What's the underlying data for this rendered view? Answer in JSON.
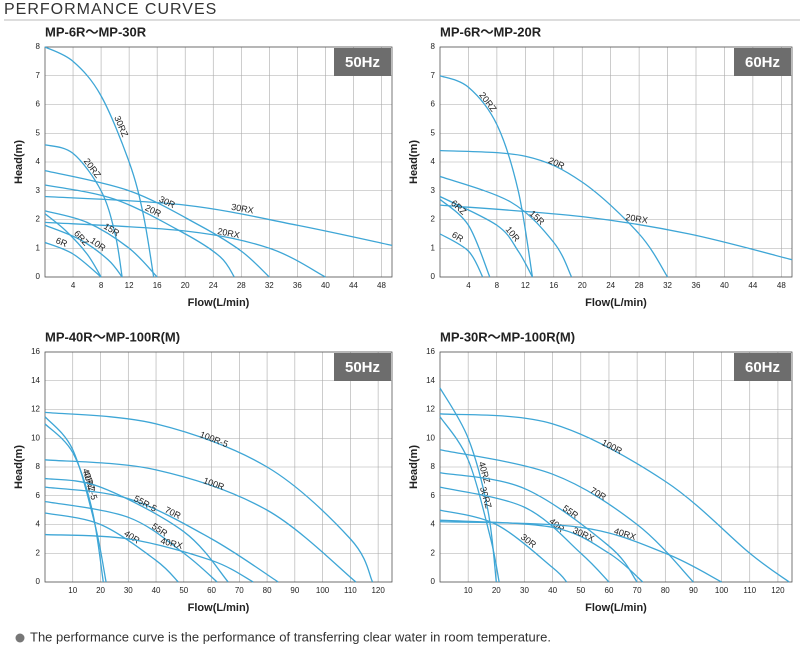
{
  "header": {
    "title": "PERFORMANCE CURVES"
  },
  "footnote": "The performance curve is the performance of transferring clear water in room temperature.",
  "chart_data": [
    {
      "type": "line",
      "title": "MP-6R～MP-30R",
      "badge": "50Hz",
      "xlabel": "Flow(L/min)",
      "ylabel": "Head(m)",
      "xlim": [
        0,
        49.5
      ],
      "ylim": [
        0,
        8
      ],
      "xticks": [
        4,
        8,
        12,
        16,
        20,
        24,
        28,
        32,
        36,
        40,
        44,
        48
      ],
      "yticks": [
        0,
        1,
        2,
        3,
        4,
        5,
        6,
        7,
        8
      ],
      "grid": true,
      "color": "#3ea6d6",
      "series": [
        {
          "name": "30RZ",
          "x": [
            0,
            4,
            8,
            12,
            14,
            15.5
          ],
          "values": [
            8,
            7.5,
            6.3,
            4,
            2.2,
            0
          ]
        },
        {
          "name": "20RZ",
          "x": [
            0,
            4,
            8,
            10,
            11
          ],
          "values": [
            4.6,
            4.3,
            3,
            1.5,
            0
          ]
        },
        {
          "name": "30RX",
          "x": [
            0,
            20,
            36,
            49.5
          ],
          "values": [
            2.8,
            2.5,
            1.8,
            1.1
          ]
        },
        {
          "name": "30R",
          "x": [
            0,
            12,
            22,
            28,
            32
          ],
          "values": [
            3.7,
            3,
            1.8,
            0.9,
            0
          ]
        },
        {
          "name": "20R",
          "x": [
            0,
            10,
            20,
            25,
            27
          ],
          "values": [
            3.2,
            2.7,
            1.5,
            0.7,
            0
          ]
        },
        {
          "name": "20RX",
          "x": [
            0,
            20,
            32,
            40
          ],
          "values": [
            1.9,
            1.6,
            1,
            0
          ]
        },
        {
          "name": "15R",
          "x": [
            0,
            6,
            12,
            16
          ],
          "values": [
            2.3,
            1.9,
            1,
            0
          ]
        },
        {
          "name": "10R",
          "x": [
            0,
            5,
            9,
            11
          ],
          "values": [
            1.8,
            1.3,
            0.6,
            0
          ]
        },
        {
          "name": "6RZ",
          "x": [
            0,
            3,
            6,
            8
          ],
          "values": [
            2.2,
            1.6,
            0.8,
            0
          ]
        },
        {
          "name": "6R",
          "x": [
            0,
            4,
            8
          ],
          "values": [
            1.2,
            0.8,
            0
          ]
        }
      ]
    },
    {
      "type": "line",
      "title": "MP-6R～MP-20R",
      "badge": "60Hz",
      "xlabel": "Flow(L/min)",
      "ylabel": "Head(m)",
      "xlim": [
        0,
        49.5
      ],
      "ylim": [
        0,
        8
      ],
      "xticks": [
        4,
        8,
        12,
        16,
        20,
        24,
        28,
        32,
        36,
        40,
        44,
        48
      ],
      "yticks": [
        0,
        1,
        2,
        3,
        4,
        5,
        6,
        7,
        8
      ],
      "grid": true,
      "color": "#3ea6d6",
      "series": [
        {
          "name": "20RZ",
          "x": [
            0,
            4,
            8,
            11,
            13
          ],
          "values": [
            7,
            6.6,
            5.3,
            3,
            0
          ]
        },
        {
          "name": "20R",
          "x": [
            0,
            12,
            20,
            28,
            32
          ],
          "values": [
            4.4,
            4.2,
            3.3,
            1.5,
            0
          ]
        },
        {
          "name": "20RX",
          "x": [
            0,
            20,
            35,
            49.5
          ],
          "values": [
            2.5,
            2.1,
            1.5,
            0.6
          ]
        },
        {
          "name": "15R",
          "x": [
            0,
            10,
            16,
            18.5
          ],
          "values": [
            3.5,
            2.6,
            1.2,
            0
          ]
        },
        {
          "name": "10R",
          "x": [
            0,
            8,
            11,
            13
          ],
          "values": [
            2.8,
            1.8,
            0.9,
            0
          ]
        },
        {
          "name": "6RZ",
          "x": [
            0,
            4,
            7
          ],
          "values": [
            2.7,
            1.8,
            0
          ]
        },
        {
          "name": "6R",
          "x": [
            0,
            4,
            6
          ],
          "values": [
            1.5,
            0.9,
            0
          ]
        }
      ]
    },
    {
      "type": "line",
      "title": "MP-40R～MP-100R(M)",
      "badge": "50Hz",
      "xlabel": "Flow(L/min)",
      "ylabel": "Head(m)",
      "xlim": [
        0,
        125
      ],
      "ylim": [
        0,
        16
      ],
      "xticks": [
        10,
        20,
        30,
        40,
        50,
        60,
        70,
        80,
        90,
        100,
        110,
        120
      ],
      "yticks": [
        0,
        2,
        4,
        6,
        8,
        10,
        12,
        14,
        16
      ],
      "grid": true,
      "color": "#3ea6d6",
      "series": [
        {
          "name": "40RZ-5",
          "x": [
            0,
            10,
            18,
            22
          ],
          "values": [
            11.5,
            9.2,
            4,
            0
          ]
        },
        {
          "name": "40RZ",
          "x": [
            0,
            10,
            17,
            21
          ],
          "values": [
            11,
            9,
            5,
            0
          ]
        },
        {
          "name": "100R-5",
          "x": [
            0,
            40,
            80,
            110,
            118
          ],
          "values": [
            11.8,
            11,
            8,
            3,
            0
          ]
        },
        {
          "name": "100R",
          "x": [
            0,
            40,
            80,
            112
          ],
          "values": [
            8.5,
            7.8,
            5,
            0
          ]
        },
        {
          "name": "70R",
          "x": [
            0,
            30,
            60,
            84
          ],
          "values": [
            6.6,
            5.8,
            3,
            0
          ]
        },
        {
          "name": "55R-5",
          "x": [
            0,
            20,
            50,
            66
          ],
          "values": [
            7.2,
            6.6,
            3.5,
            0
          ]
        },
        {
          "name": "55R",
          "x": [
            0,
            30,
            50,
            62
          ],
          "values": [
            5.6,
            4.5,
            2,
            0
          ]
        },
        {
          "name": "40R",
          "x": [
            0,
            20,
            40,
            48
          ],
          "values": [
            4.8,
            4,
            1.5,
            0
          ]
        },
        {
          "name": "40RX",
          "x": [
            0,
            30,
            60,
            75
          ],
          "values": [
            3.3,
            3,
            1.5,
            0
          ]
        }
      ]
    },
    {
      "type": "line",
      "title": "MP-30R～MP-100R(M)",
      "badge": "60Hz",
      "xlabel": "Flow(L/min)",
      "ylabel": "Head(m)",
      "xlim": [
        0,
        125
      ],
      "ylim": [
        0,
        16
      ],
      "xticks": [
        10,
        20,
        30,
        40,
        50,
        60,
        70,
        80,
        90,
        100,
        110,
        120
      ],
      "yticks": [
        0,
        2,
        4,
        6,
        8,
        10,
        12,
        14,
        16
      ],
      "grid": true,
      "color": "#3ea6d6",
      "series": [
        {
          "name": "40RZ",
          "x": [
            0,
            10,
            17,
            20
          ],
          "values": [
            13.5,
            10,
            5,
            0
          ]
        },
        {
          "name": "30RZ",
          "x": [
            0,
            10,
            18,
            21
          ],
          "values": [
            11.5,
            8.5,
            3,
            0
          ]
        },
        {
          "name": "100R",
          "x": [
            0,
            40,
            80,
            110,
            124
          ],
          "values": [
            11.7,
            11,
            7,
            2,
            0
          ]
        },
        {
          "name": "70R",
          "x": [
            0,
            40,
            70,
            90
          ],
          "values": [
            9.2,
            7.5,
            4,
            0
          ]
        },
        {
          "name": "55R",
          "x": [
            0,
            30,
            60,
            70
          ],
          "values": [
            7.6,
            6.5,
            2.5,
            0
          ]
        },
        {
          "name": "40R",
          "x": [
            0,
            30,
            50,
            60
          ],
          "values": [
            6.6,
            5.2,
            2,
            0
          ]
        },
        {
          "name": "30R",
          "x": [
            0,
            20,
            40,
            45
          ],
          "values": [
            5,
            4,
            1,
            0
          ]
        },
        {
          "name": "30RX",
          "x": [
            0,
            40,
            60,
            72
          ],
          "values": [
            4.3,
            3.8,
            2,
            0
          ]
        },
        {
          "name": "40RX",
          "x": [
            0,
            50,
            80,
            100
          ],
          "values": [
            4.2,
            3.8,
            2,
            0
          ]
        }
      ]
    }
  ]
}
